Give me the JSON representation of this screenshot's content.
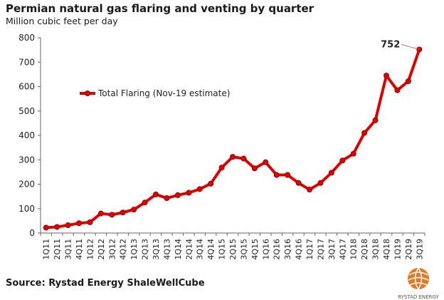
{
  "title": "Permian natural gas flaring and venting by quarter",
  "subtitle": "Million cubic feet per day",
  "source": "Source: Rystad Energy ShaleWellCube",
  "logo_text": "RYSTAD ENERGY",
  "chart_data": {
    "type": "line",
    "title": "Permian natural gas flaring and venting by quarter",
    "ylabel": "Million cubic feet per day",
    "ylim": [
      0,
      800
    ],
    "yticks": [
      0,
      100,
      200,
      300,
      400,
      500,
      600,
      700,
      800
    ],
    "ytick_labels": [
      "0",
      "100",
      "200",
      "300",
      "400",
      "500",
      "600",
      "700",
      "800"
    ],
    "grid": false,
    "legend_placement": "upper-left inside",
    "categories": [
      "1Q11",
      "2Q11",
      "3Q11",
      "4Q11",
      "1Q12",
      "2Q12",
      "3Q12",
      "4Q12",
      "1Q13",
      "2Q13",
      "3Q13",
      "4Q13",
      "1Q14",
      "2Q14",
      "3Q14",
      "4Q14",
      "1Q15",
      "2Q15",
      "3Q15",
      "4Q15",
      "1Q16",
      "2Q16",
      "3Q16",
      "4Q16",
      "1Q17",
      "2Q17",
      "3Q17",
      "4Q17",
      "1Q18",
      "2Q18",
      "3Q18",
      "4Q18",
      "1Q19",
      "2Q19",
      "3Q19"
    ],
    "series": [
      {
        "name": "Total Flaring (Nov-19 estimate)",
        "color": "#e00000",
        "values": [
          22,
          25,
          32,
          40,
          44,
          80,
          75,
          84,
          96,
          125,
          158,
          143,
          155,
          165,
          180,
          202,
          268,
          312,
          305,
          265,
          290,
          238,
          238,
          205,
          178,
          205,
          247,
          297,
          325,
          410,
          462,
          645,
          585,
          622,
          752
        ]
      }
    ],
    "annotations": [
      {
        "text": "752",
        "category": "3Q19"
      }
    ]
  }
}
